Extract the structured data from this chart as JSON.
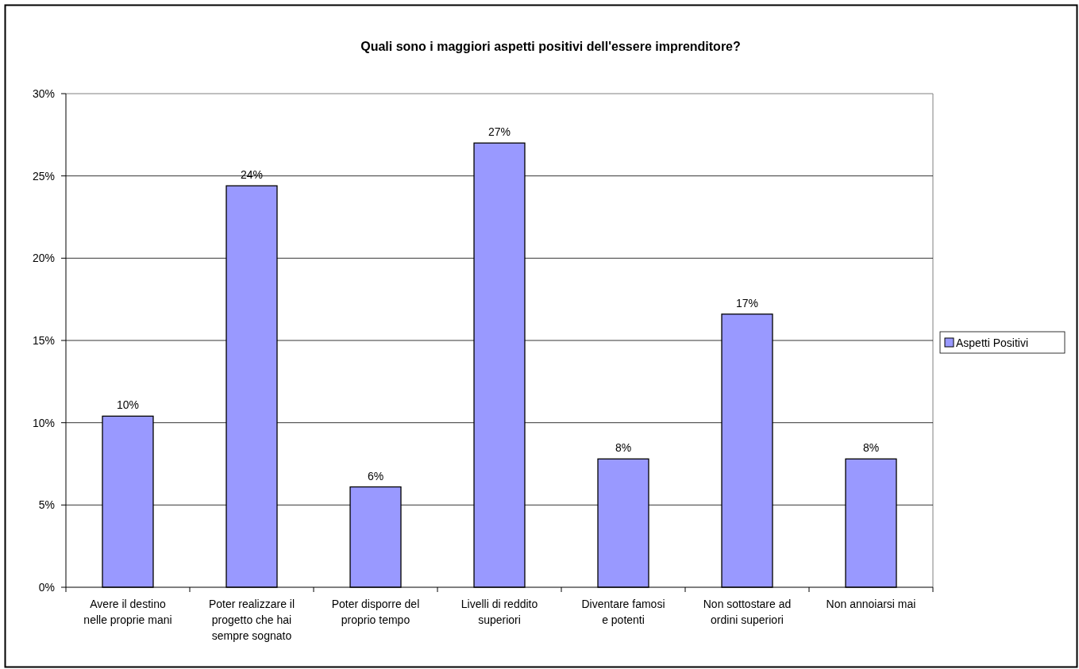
{
  "chart_data": {
    "type": "bar",
    "title": "Quali sono i maggiori aspetti positivi dell'essere imprenditore?",
    "categories": [
      "Avere il destino nelle proprie mani",
      "Poter realizzare il progetto che hai sempre sognato",
      "Poter disporre del proprio tempo",
      "Livelli di reddito superiori",
      "Diventare famosi e potenti",
      "Non sottostare ad ordini superiori",
      "Non annoiarsi mai"
    ],
    "series": [
      {
        "name": "Aspetti Positivi",
        "color": "#9999ff",
        "values": [
          10.4,
          24.4,
          6.1,
          27.0,
          7.8,
          16.6,
          7.8
        ],
        "value_labels": [
          "10%",
          "24%",
          "6%",
          "27%",
          "8%",
          "17%",
          "8%"
        ]
      }
    ],
    "ylim": [
      0,
      30
    ],
    "yticks": [
      {
        "value": 0,
        "label": "0%"
      },
      {
        "value": 5,
        "label": "5%"
      },
      {
        "value": 10,
        "label": "10%"
      },
      {
        "value": 15,
        "label": "15%"
      },
      {
        "value": 20,
        "label": "20%"
      },
      {
        "value": 25,
        "label": "25%"
      },
      {
        "value": 30,
        "label": "30%"
      }
    ],
    "grid": "y",
    "legend": "right"
  }
}
